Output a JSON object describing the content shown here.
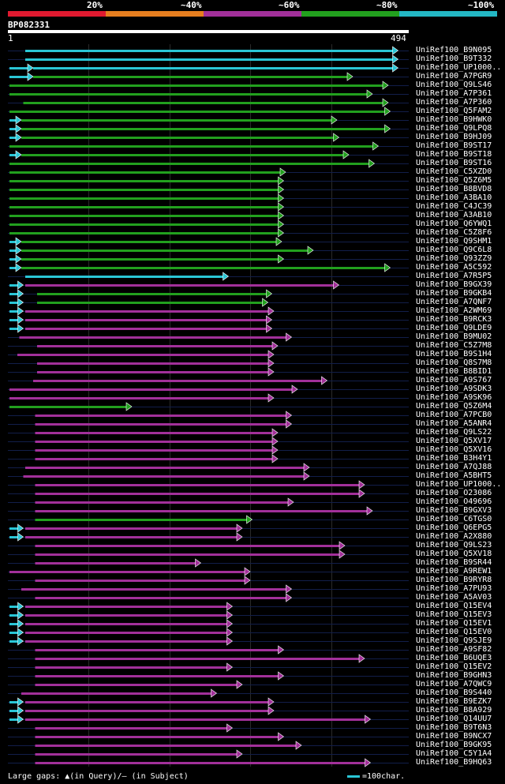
{
  "header": {
    "legend": [
      "20%",
      "~40%",
      "~60%",
      "~80%",
      "~100%"
    ],
    "legend_colors": [
      "#e01a30",
      "#e67e1f",
      "#a2309a",
      "#22a01e",
      "#23b7c4"
    ],
    "query_id": "BP082331",
    "ruler_start": "1",
    "ruler_end": "494"
  },
  "footer": {
    "gaps_text": "Large gaps: ▲(in Query)/– (in Subject)",
    "scale_text": "=100char."
  },
  "hits": [
    {
      "label": "UniRef100_B9N095",
      "color": "cyan",
      "start": 0.04,
      "end": 0.985,
      "extra": []
    },
    {
      "label": "UniRef100_B9T332",
      "color": "cyan",
      "start": 0.04,
      "end": 0.985,
      "extra": []
    },
    {
      "label": "UniRef100_UP1000..",
      "color": "cyan",
      "start": 0.06,
      "end": 0.985,
      "extra": [
        {
          "s": 0.0,
          "e": 0.06,
          "c": "cyan"
        }
      ]
    },
    {
      "label": "UniRef100_A7PGR9",
      "color": "green",
      "start": 0.06,
      "end": 0.87,
      "extra": [
        {
          "s": 0.0,
          "e": 0.06,
          "c": "cyan"
        }
      ]
    },
    {
      "label": "UniRef100_Q9LS46",
      "color": "green",
      "start": 0.0,
      "end": 0.96,
      "extra": []
    },
    {
      "label": "UniRef100_A7P361",
      "color": "green",
      "start": 0.0,
      "end": 0.92,
      "extra": []
    },
    {
      "label": "UniRef100_A7P360",
      "color": "green",
      "start": 0.035,
      "end": 0.96,
      "extra": []
    },
    {
      "label": "UniRef100_Q5FAM2",
      "color": "green",
      "start": 0.0,
      "end": 0.965,
      "extra": []
    },
    {
      "label": "UniRef100_B9HWK0",
      "color": "green",
      "start": 0.03,
      "end": 0.83,
      "extra": [
        {
          "s": 0.0,
          "e": 0.03,
          "c": "cyan"
        }
      ]
    },
    {
      "label": "UniRef100_Q9LPQ8",
      "color": "green",
      "start": 0.03,
      "end": 0.965,
      "extra": [
        {
          "s": 0.0,
          "e": 0.03,
          "c": "cyan"
        }
      ]
    },
    {
      "label": "UniRef100_B9HJ09",
      "color": "green",
      "start": 0.03,
      "end": 0.835,
      "extra": [
        {
          "s": 0.0,
          "e": 0.03,
          "c": "cyan"
        }
      ]
    },
    {
      "label": "UniRef100_B9ST17",
      "color": "green",
      "start": 0.0,
      "end": 0.935,
      "extra": []
    },
    {
      "label": "UniRef100_B9ST18",
      "color": "green",
      "start": 0.03,
      "end": 0.86,
      "extra": [
        {
          "s": 0.0,
          "e": 0.03,
          "c": "cyan"
        }
      ]
    },
    {
      "label": "UniRef100_B9ST16",
      "color": "green",
      "start": 0.0,
      "end": 0.925,
      "extra": []
    },
    {
      "label": "UniRef100_C5XZD0",
      "color": "green",
      "start": 0.0,
      "end": 0.7,
      "extra": []
    },
    {
      "label": "UniRef100_Q5Z6M5",
      "color": "green",
      "start": 0.0,
      "end": 0.695,
      "extra": []
    },
    {
      "label": "UniRef100_B8BVD8",
      "color": "green",
      "start": 0.0,
      "end": 0.695,
      "extra": []
    },
    {
      "label": "UniRef100_A3BA10",
      "color": "green",
      "start": 0.0,
      "end": 0.695,
      "extra": []
    },
    {
      "label": "UniRef100_C4JC39",
      "color": "green",
      "start": 0.0,
      "end": 0.695,
      "extra": []
    },
    {
      "label": "UniRef100_A3AB10",
      "color": "green",
      "start": 0.0,
      "end": 0.695,
      "extra": []
    },
    {
      "label": "UniRef100_Q6YWQ1",
      "color": "green",
      "start": 0.0,
      "end": 0.695,
      "extra": []
    },
    {
      "label": "UniRef100_C5Z8F6",
      "color": "green",
      "start": 0.0,
      "end": 0.695,
      "extra": []
    },
    {
      "label": "UniRef100_Q9SHM1",
      "color": "green",
      "start": 0.03,
      "end": 0.69,
      "extra": [
        {
          "s": 0.0,
          "e": 0.03,
          "c": "cyan"
        }
      ]
    },
    {
      "label": "UniRef100_Q9C6L8",
      "color": "green",
      "start": 0.03,
      "end": 0.77,
      "extra": [
        {
          "s": 0.0,
          "e": 0.03,
          "c": "cyan"
        }
      ]
    },
    {
      "label": "UniRef100_Q93ZZ9",
      "color": "green",
      "start": 0.03,
      "end": 0.695,
      "extra": [
        {
          "s": 0.0,
          "e": 0.03,
          "c": "cyan"
        }
      ]
    },
    {
      "label": "UniRef100_A5C592",
      "color": "green",
      "start": 0.03,
      "end": 0.965,
      "extra": [
        {
          "s": 0.0,
          "e": 0.03,
          "c": "cyan"
        }
      ]
    },
    {
      "label": "UniRef100_A7R5P5",
      "color": "cyan",
      "start": 0.04,
      "end": 0.555,
      "extra": []
    },
    {
      "label": "UniRef100_B9GX39",
      "color": "purple",
      "start": 0.04,
      "end": 0.835,
      "extra": [
        {
          "s": 0.0,
          "e": 0.035,
          "c": "cyan"
        }
      ]
    },
    {
      "label": "UniRef100_B9GKB4",
      "color": "green",
      "start": 0.07,
      "end": 0.665,
      "extra": [
        {
          "s": 0.0,
          "e": 0.035,
          "c": "cyan"
        }
      ]
    },
    {
      "label": "UniRef100_A7QNF7",
      "color": "green",
      "start": 0.07,
      "end": 0.655,
      "extra": [
        {
          "s": 0.0,
          "e": 0.035,
          "c": "cyan"
        }
      ]
    },
    {
      "label": "UniRef100_A2WM69",
      "color": "purple",
      "start": 0.04,
      "end": 0.67,
      "extra": [
        {
          "s": 0.0,
          "e": 0.035,
          "c": "cyan"
        }
      ]
    },
    {
      "label": "UniRef100_B9RCK3",
      "color": "purple",
      "start": 0.04,
      "end": 0.665,
      "extra": [
        {
          "s": 0.0,
          "e": 0.035,
          "c": "cyan"
        }
      ]
    },
    {
      "label": "UniRef100_Q9LDE9",
      "color": "purple",
      "start": 0.04,
      "end": 0.665,
      "extra": [
        {
          "s": 0.0,
          "e": 0.035,
          "c": "cyan"
        }
      ]
    },
    {
      "label": "UniRef100_B9MU02",
      "color": "purple",
      "start": 0.025,
      "end": 0.715,
      "extra": []
    },
    {
      "label": "UniRef100_C5Z7M8",
      "color": "purple",
      "start": 0.07,
      "end": 0.68,
      "extra": []
    },
    {
      "label": "UniRef100_B9S1H4",
      "color": "purple",
      "start": 0.02,
      "end": 0.67,
      "extra": []
    },
    {
      "label": "UniRef100_Q8S7M8",
      "color": "purple",
      "start": 0.07,
      "end": 0.67,
      "extra": []
    },
    {
      "label": "UniRef100_B8BID1",
      "color": "purple",
      "start": 0.07,
      "end": 0.67,
      "extra": []
    },
    {
      "label": "UniRef100_A9S767",
      "color": "purple",
      "start": 0.06,
      "end": 0.805,
      "extra": []
    },
    {
      "label": "UniRef100_A9SDK3",
      "color": "purple",
      "start": 0.0,
      "end": 0.73,
      "extra": []
    },
    {
      "label": "UniRef100_A9SK96",
      "color": "purple",
      "start": 0.0,
      "end": 0.67,
      "extra": []
    },
    {
      "label": "UniRef100_Q5Z6M4",
      "color": "green",
      "start": 0.0,
      "end": 0.31,
      "extra": []
    },
    {
      "label": "UniRef100_A7PCB0",
      "color": "purple",
      "start": 0.065,
      "end": 0.715,
      "extra": []
    },
    {
      "label": "UniRef100_A5ANR4",
      "color": "purple",
      "start": 0.065,
      "end": 0.715,
      "extra": []
    },
    {
      "label": "UniRef100_Q9LS22",
      "color": "purple",
      "start": 0.065,
      "end": 0.68,
      "extra": []
    },
    {
      "label": "UniRef100_Q5XV17",
      "color": "purple",
      "start": 0.065,
      "end": 0.68,
      "extra": []
    },
    {
      "label": "UniRef100_Q5XV16",
      "color": "purple",
      "start": 0.065,
      "end": 0.68,
      "extra": []
    },
    {
      "label": "UniRef100_B3H4Y1",
      "color": "purple",
      "start": 0.065,
      "end": 0.68,
      "extra": []
    },
    {
      "label": "UniRef100_A7QJ88",
      "color": "purple",
      "start": 0.04,
      "end": 0.76,
      "extra": []
    },
    {
      "label": "UniRef100_A5BHT5",
      "color": "purple",
      "start": 0.035,
      "end": 0.76,
      "extra": []
    },
    {
      "label": "UniRef100_UP1000..",
      "color": "purple",
      "start": 0.065,
      "end": 0.9,
      "extra": []
    },
    {
      "label": "UniRef100_O23086",
      "color": "purple",
      "start": 0.065,
      "end": 0.9,
      "extra": []
    },
    {
      "label": "UniRef100_O49696",
      "color": "purple",
      "start": 0.065,
      "end": 0.72,
      "extra": []
    },
    {
      "label": "UniRef100_B9GXV3",
      "color": "purple",
      "start": 0.065,
      "end": 0.92,
      "extra": []
    },
    {
      "label": "UniRef100_C6TGS0",
      "color": "green",
      "start": 0.065,
      "end": 0.615,
      "extra": []
    },
    {
      "label": "UniRef100_Q6EPG5",
      "color": "purple",
      "start": 0.04,
      "end": 0.59,
      "extra": [
        {
          "s": 0.0,
          "e": 0.035,
          "c": "cyan"
        }
      ]
    },
    {
      "label": "UniRef100_A2X880",
      "color": "purple",
      "start": 0.04,
      "end": 0.59,
      "extra": [
        {
          "s": 0.0,
          "e": 0.035,
          "c": "cyan"
        }
      ]
    },
    {
      "label": "UniRef100_Q9LS23",
      "color": "purple",
      "start": 0.065,
      "end": 0.85,
      "extra": []
    },
    {
      "label": "UniRef100_Q5XV18",
      "color": "purple",
      "start": 0.065,
      "end": 0.85,
      "extra": []
    },
    {
      "label": "UniRef100_B9SR44",
      "color": "purple",
      "start": 0.065,
      "end": 0.485,
      "extra": []
    },
    {
      "label": "UniRef100_A9REW1",
      "color": "purple",
      "start": 0.0,
      "end": 0.61,
      "extra": []
    },
    {
      "label": "UniRef100_B9RYR8",
      "color": "purple",
      "start": 0.065,
      "end": 0.61,
      "extra": []
    },
    {
      "label": "UniRef100_A7PU93",
      "color": "purple",
      "start": 0.03,
      "end": 0.715,
      "extra": []
    },
    {
      "label": "UniRef100_A5AV03",
      "color": "purple",
      "start": 0.065,
      "end": 0.715,
      "extra": []
    },
    {
      "label": "UniRef100_Q15EV4",
      "color": "purple",
      "start": 0.04,
      "end": 0.565,
      "extra": [
        {
          "s": 0.0,
          "e": 0.035,
          "c": "cyan"
        }
      ]
    },
    {
      "label": "UniRef100_Q15EV3",
      "color": "purple",
      "start": 0.04,
      "end": 0.565,
      "extra": [
        {
          "s": 0.0,
          "e": 0.035,
          "c": "cyan"
        }
      ]
    },
    {
      "label": "UniRef100_Q15EV1",
      "color": "purple",
      "start": 0.04,
      "end": 0.565,
      "extra": [
        {
          "s": 0.0,
          "e": 0.035,
          "c": "cyan"
        }
      ]
    },
    {
      "label": "UniRef100_Q15EV0",
      "color": "purple",
      "start": 0.04,
      "end": 0.565,
      "extra": [
        {
          "s": 0.0,
          "e": 0.035,
          "c": "cyan"
        }
      ]
    },
    {
      "label": "UniRef100_Q9SJE9",
      "color": "purple",
      "start": 0.04,
      "end": 0.565,
      "extra": [
        {
          "s": 0.0,
          "e": 0.035,
          "c": "cyan"
        }
      ]
    },
    {
      "label": "UniRef100_A9SF82",
      "color": "purple",
      "start": 0.065,
      "end": 0.695,
      "extra": []
    },
    {
      "label": "UniRef100_B6UQE3",
      "color": "purple",
      "start": 0.065,
      "end": 0.9,
      "extra": []
    },
    {
      "label": "UniRef100_Q15EV2",
      "color": "purple",
      "start": 0.065,
      "end": 0.565,
      "extra": []
    },
    {
      "label": "UniRef100_B9GHN3",
      "color": "purple",
      "start": 0.065,
      "end": 0.695,
      "extra": []
    },
    {
      "label": "UniRef100_A7QWC9",
      "color": "purple",
      "start": 0.065,
      "end": 0.59,
      "extra": []
    },
    {
      "label": "UniRef100_B9S440",
      "color": "purple",
      "start": 0.03,
      "end": 0.525,
      "extra": []
    },
    {
      "label": "UniRef100_B9EZK7",
      "color": "purple",
      "start": 0.04,
      "end": 0.67,
      "extra": [
        {
          "s": 0.0,
          "e": 0.035,
          "c": "cyan"
        }
      ]
    },
    {
      "label": "UniRef100_B8A929",
      "color": "purple",
      "start": 0.04,
      "end": 0.67,
      "extra": [
        {
          "s": 0.0,
          "e": 0.035,
          "c": "cyan"
        }
      ]
    },
    {
      "label": "UniRef100_Q14UU7",
      "color": "purple",
      "start": 0.04,
      "end": 0.915,
      "extra": [
        {
          "s": 0.0,
          "e": 0.035,
          "c": "cyan"
        }
      ]
    },
    {
      "label": "UniRef100_B9T6N3",
      "color": "purple",
      "start": 0.065,
      "end": 0.565,
      "extra": []
    },
    {
      "label": "UniRef100_B9NCX7",
      "color": "purple",
      "start": 0.065,
      "end": 0.695,
      "extra": []
    },
    {
      "label": "UniRef100_B9GK95",
      "color": "purple",
      "start": 0.065,
      "end": 0.74,
      "extra": []
    },
    {
      "label": "UniRef100_C5Y1A4",
      "color": "purple",
      "start": 0.065,
      "end": 0.59,
      "extra": []
    },
    {
      "label": "UniRef100_B9HQ63",
      "color": "purple",
      "start": 0.065,
      "end": 0.915,
      "extra": []
    }
  ]
}
